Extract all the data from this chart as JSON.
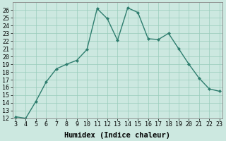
{
  "x": [
    3,
    4,
    5,
    6,
    7,
    8,
    9,
    10,
    11,
    12,
    13,
    14,
    15,
    16,
    17,
    18,
    19,
    20,
    21,
    22,
    23
  ],
  "y": [
    12.2,
    12.0,
    14.2,
    16.7,
    18.4,
    19.0,
    19.5,
    20.9,
    26.2,
    24.9,
    22.1,
    26.3,
    25.7,
    22.3,
    22.2,
    23.0,
    21.0,
    19.0,
    17.2,
    15.8,
    15.5
  ],
  "xlabel": "Humidex (Indice chaleur)",
  "ylim": [
    12,
    27
  ],
  "xlim": [
    2.7,
    23.3
  ],
  "yticks": [
    12,
    13,
    14,
    15,
    16,
    17,
    18,
    19,
    20,
    21,
    22,
    23,
    24,
    25,
    26
  ],
  "xticks": [
    3,
    4,
    5,
    6,
    7,
    8,
    9,
    10,
    11,
    12,
    13,
    14,
    15,
    16,
    17,
    18,
    19,
    20,
    21,
    22,
    23
  ],
  "line_color": "#2e7d6e",
  "marker": "D",
  "marker_size": 2.0,
  "bg_color": "#cce8e0",
  "grid_color": "#99ccbb",
  "xlabel_fontsize": 7.5,
  "tick_fontsize": 6.0,
  "linewidth": 1.0
}
